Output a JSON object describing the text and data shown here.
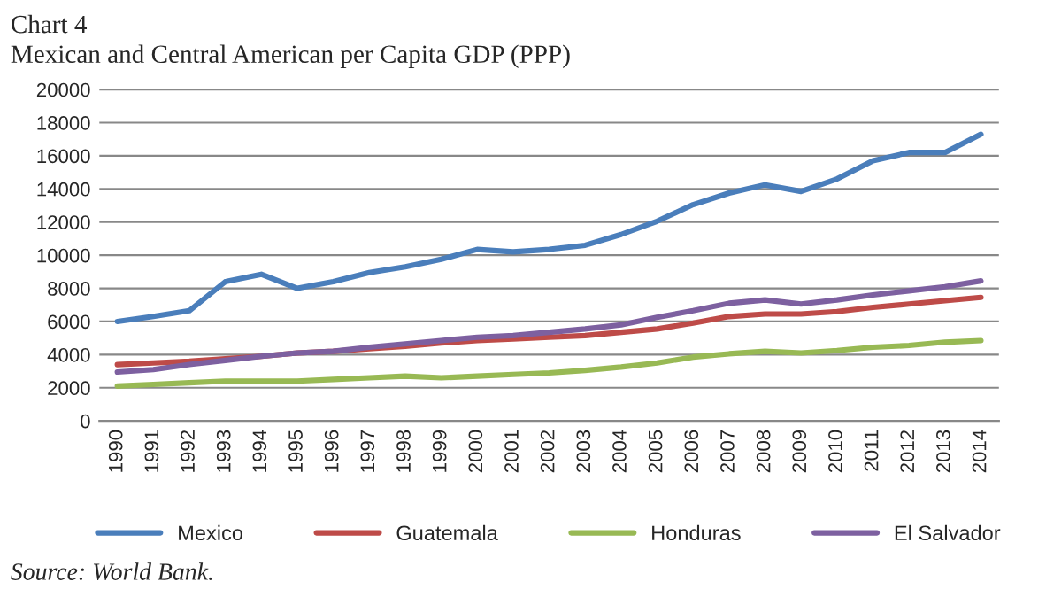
{
  "chart_data": {
    "type": "line",
    "title": "Chart 4",
    "subtitle": "Mexican and Central American per Capita GDP (PPP)",
    "categories": [
      "1990",
      "1991",
      "1992",
      "1993",
      "1994",
      "1995",
      "1996",
      "1997",
      "1998",
      "1999",
      "2000",
      "2001",
      "2002",
      "2003",
      "2004",
      "2005",
      "2006",
      "2007",
      "2008",
      "2009",
      "2010",
      "2011",
      "2012",
      "2013",
      "2014"
    ],
    "series": [
      {
        "name": "Mexico",
        "color": "#4a7ebb",
        "values": [
          6000,
          6300,
          6650,
          8400,
          8850,
          8000,
          8400,
          8950,
          9300,
          9750,
          10350,
          10200,
          10350,
          10600,
          11250,
          12050,
          13050,
          13750,
          14250,
          13850,
          14600,
          15700,
          16200,
          16200,
          17300
        ]
      },
      {
        "name": "Guatemala",
        "color": "#be4b48",
        "values": [
          3400,
          3500,
          3600,
          3750,
          3900,
          4100,
          4200,
          4350,
          4500,
          4700,
          4850,
          4950,
          5050,
          5150,
          5350,
          5550,
          5900,
          6300,
          6450,
          6450,
          6600,
          6850,
          7050,
          7250,
          7450
        ]
      },
      {
        "name": "Honduras",
        "color": "#98b954",
        "values": [
          2100,
          2200,
          2300,
          2400,
          2400,
          2400,
          2500,
          2600,
          2700,
          2600,
          2700,
          2800,
          2900,
          3050,
          3250,
          3500,
          3850,
          4050,
          4200,
          4100,
          4250,
          4450,
          4550,
          4750,
          4850
        ]
      },
      {
        "name": "El Salvador",
        "color": "#7d60a0",
        "values": [
          2950,
          3100,
          3400,
          3650,
          3900,
          4100,
          4200,
          4450,
          4650,
          4850,
          5050,
          5150,
          5350,
          5550,
          5800,
          6250,
          6650,
          7100,
          7300,
          7050,
          7300,
          7600,
          7850,
          8100,
          8450
        ]
      }
    ],
    "ylim": [
      0,
      20000
    ],
    "yticks": [
      0,
      2000,
      4000,
      6000,
      8000,
      10000,
      12000,
      14000,
      16000,
      18000,
      20000
    ],
    "grid": "y",
    "legend": "bottom",
    "annotations": [
      "Source: World Bank."
    ]
  }
}
